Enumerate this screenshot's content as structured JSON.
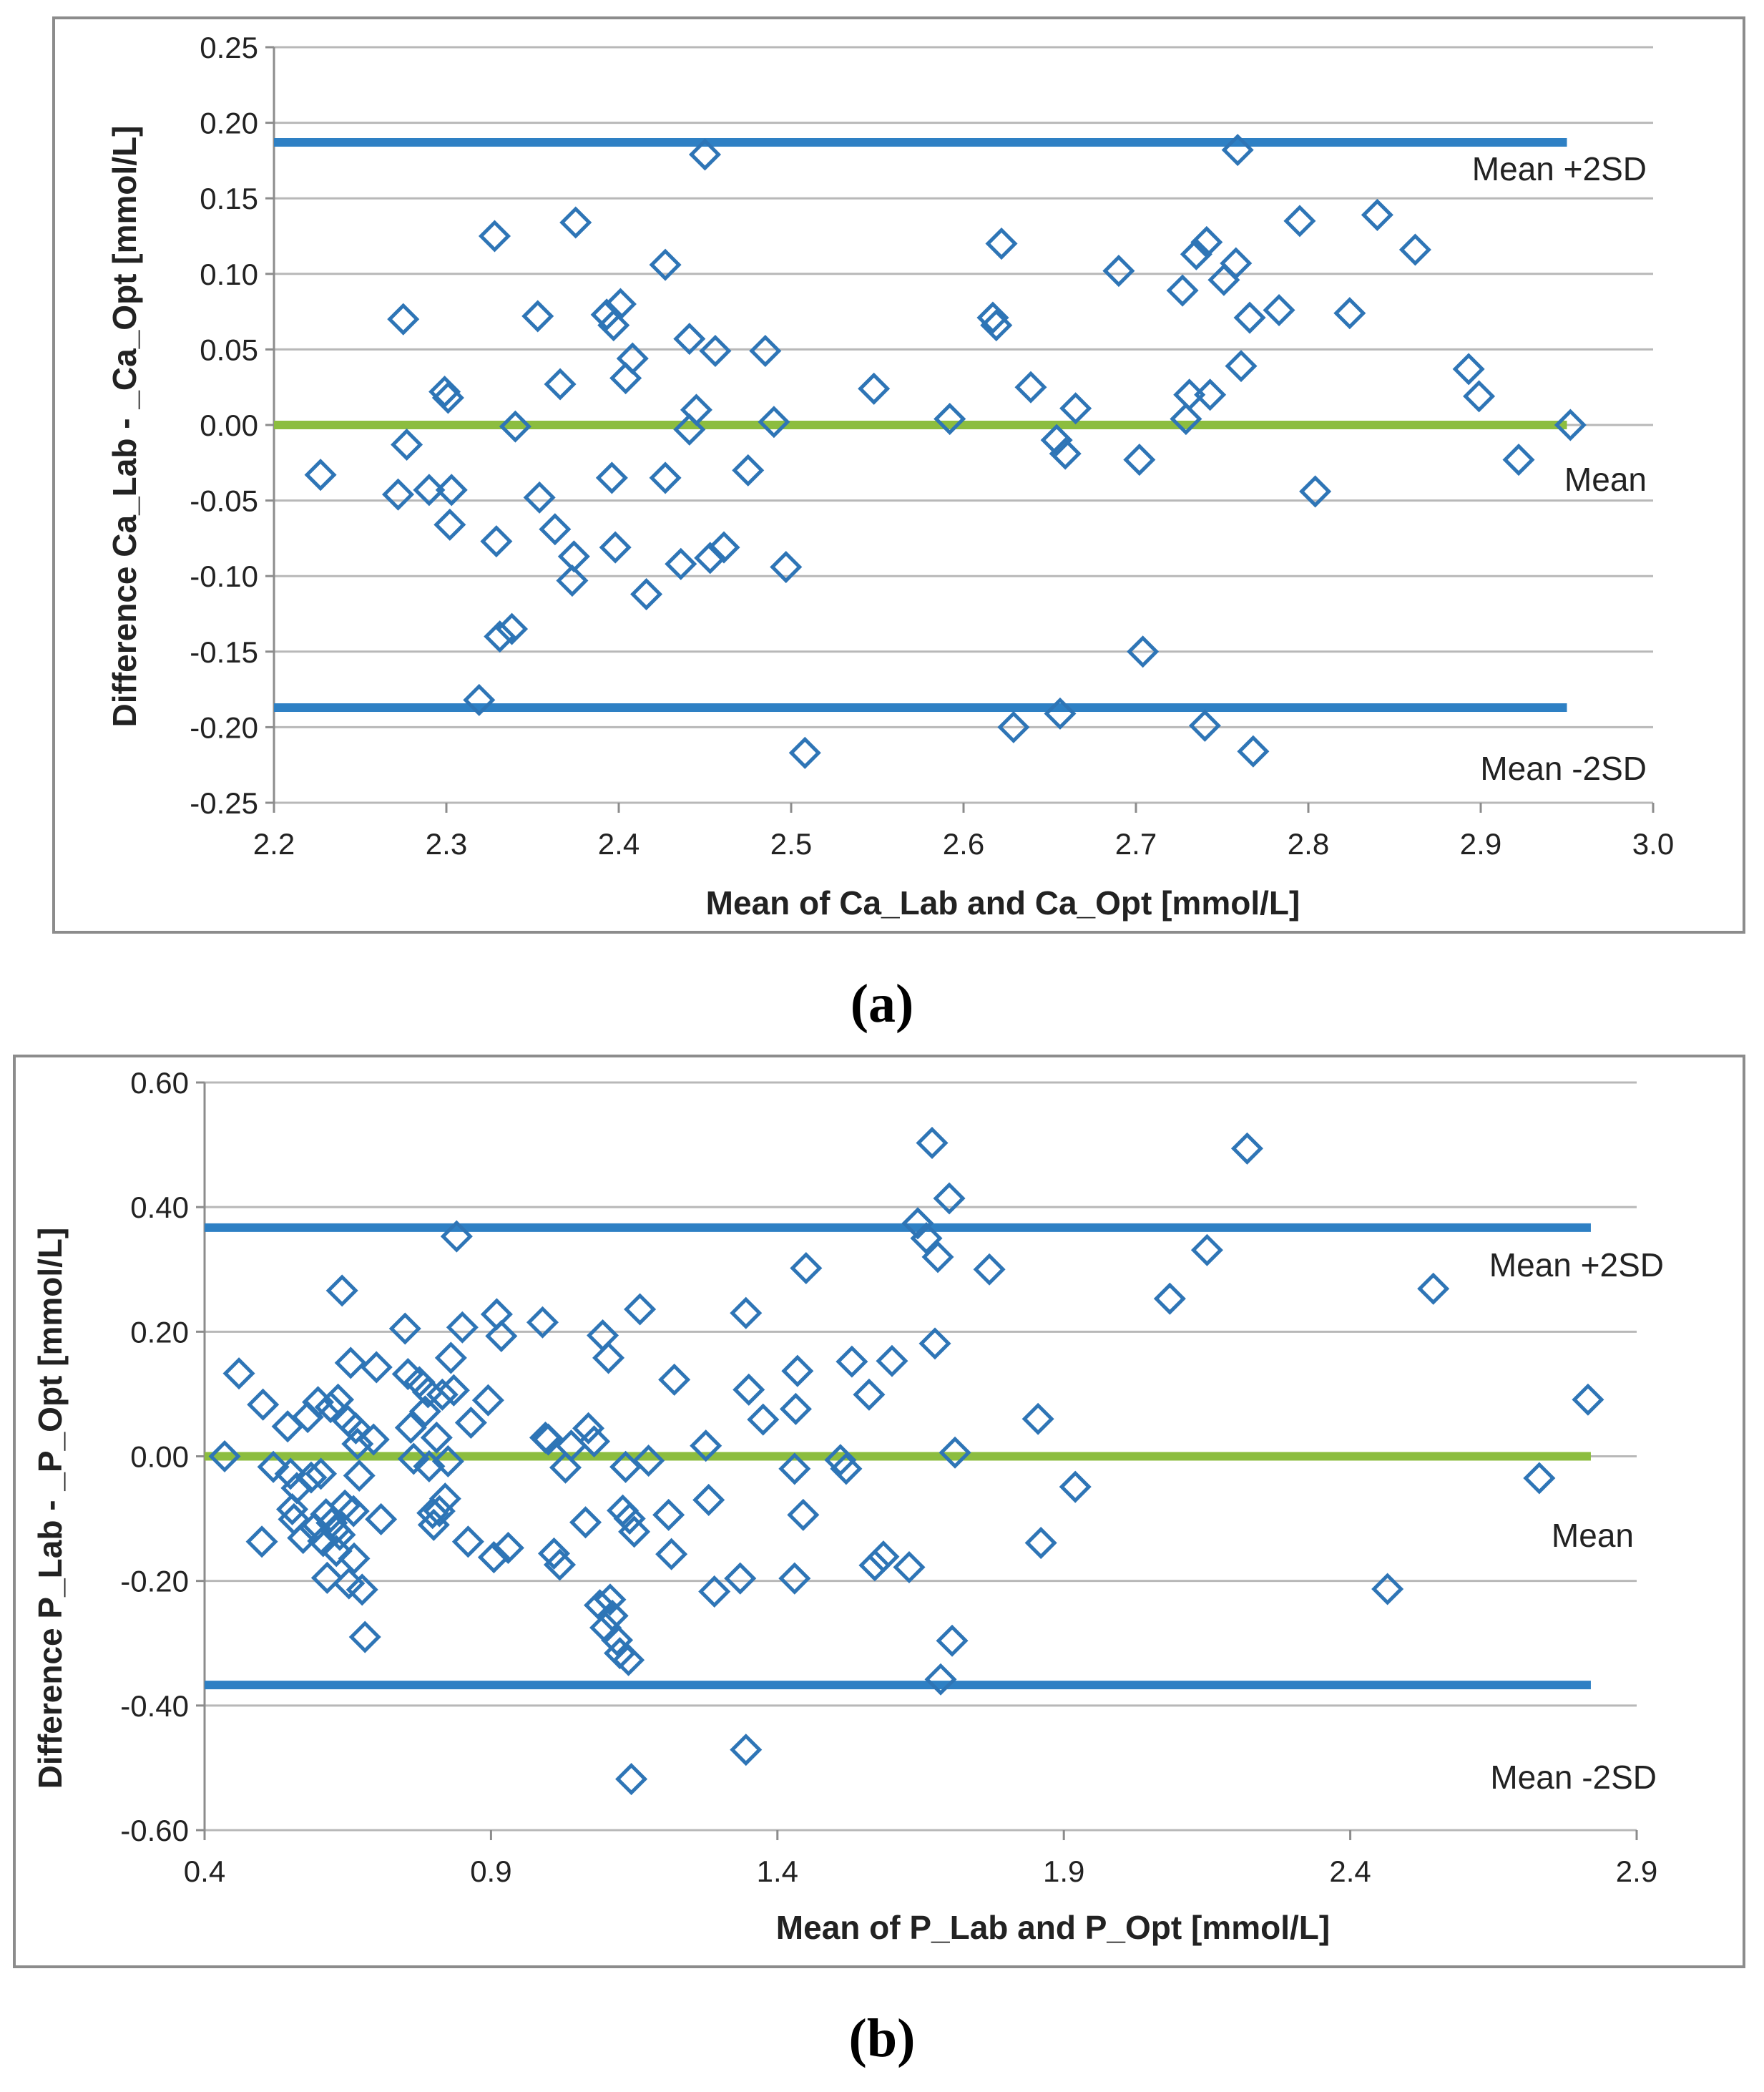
{
  "colors": {
    "marker": "#2e75b6",
    "sd_line": "#2e80c4",
    "mean_line": "#8cbd3f",
    "grid": "#b8b8b8",
    "frame": "#8c8c8c"
  },
  "chart_data": [
    {
      "type": "scatter",
      "panel_label": "(a)",
      "xlabel": "Mean of Ca_Lab and Ca_Opt [mmol/L]",
      "ylabel": "Difference Ca_Lab - _Ca_Opt [mmol/L]",
      "xlim": [
        2.2,
        3.0
      ],
      "ylim": [
        -0.25,
        0.25
      ],
      "x_ticks": [
        "2.2",
        "2.3",
        "2.4",
        "2.5",
        "2.6",
        "2.7",
        "2.8",
        "2.9",
        "3.0"
      ],
      "y_ticks": [
        "0.25",
        "0.20",
        "0.15",
        "0.10",
        "0.05",
        "0.00",
        "-0.05",
        "-0.10",
        "-0.15",
        "-0.20",
        "-0.25"
      ],
      "grid": "horizontal",
      "lines": {
        "upper": {
          "y": 0.187,
          "x_end": 2.95,
          "label": "Mean +2SD"
        },
        "mean": {
          "y": 0.0,
          "x_end": 2.95,
          "label": "Mean"
        },
        "lower": {
          "y": -0.187,
          "x_end": 2.95,
          "label": "Mean -2SD"
        }
      },
      "points": [
        [
          2.227,
          -0.033
        ],
        [
          2.272,
          -0.046
        ],
        [
          2.277,
          -0.013
        ],
        [
          2.275,
          0.07
        ],
        [
          2.29,
          -0.043
        ],
        [
          2.299,
          0.022
        ],
        [
          2.301,
          0.018
        ],
        [
          2.302,
          -0.066
        ],
        [
          2.303,
          -0.043
        ],
        [
          2.319,
          -0.182
        ],
        [
          2.328,
          0.125
        ],
        [
          2.329,
          -0.077
        ],
        [
          2.331,
          -0.14
        ],
        [
          2.338,
          -0.135
        ],
        [
          2.34,
          -0.001
        ],
        [
          2.353,
          0.072
        ],
        [
          2.354,
          -0.048
        ],
        [
          2.363,
          -0.069
        ],
        [
          2.366,
          0.027
        ],
        [
          2.373,
          -0.103
        ],
        [
          2.374,
          -0.087
        ],
        [
          2.375,
          0.134
        ],
        [
          2.393,
          0.073
        ],
        [
          2.397,
          0.066
        ],
        [
          2.396,
          -0.035
        ],
        [
          2.398,
          -0.081
        ],
        [
          2.401,
          0.08
        ],
        [
          2.404,
          0.031
        ],
        [
          2.408,
          0.044
        ],
        [
          2.416,
          -0.112
        ],
        [
          2.427,
          0.106
        ],
        [
          2.427,
          -0.035
        ],
        [
          2.436,
          -0.092
        ],
        [
          2.441,
          0.057
        ],
        [
          2.441,
          -0.003
        ],
        [
          2.445,
          0.01
        ],
        [
          2.45,
          0.179
        ],
        [
          2.453,
          -0.088
        ],
        [
          2.456,
          0.049
        ],
        [
          2.461,
          -0.081
        ],
        [
          2.475,
          -0.03
        ],
        [
          2.485,
          0.049
        ],
        [
          2.49,
          0.002
        ],
        [
          2.497,
          -0.094
        ],
        [
          2.508,
          -0.217
        ],
        [
          2.548,
          0.024
        ],
        [
          2.592,
          0.004
        ],
        [
          2.617,
          0.071
        ],
        [
          2.619,
          0.066
        ],
        [
          2.622,
          0.12
        ],
        [
          2.629,
          -0.2
        ],
        [
          2.639,
          0.025
        ],
        [
          2.654,
          -0.01
        ],
        [
          2.656,
          -0.191
        ],
        [
          2.659,
          -0.019
        ],
        [
          2.665,
          0.011
        ],
        [
          2.69,
          0.102
        ],
        [
          2.702,
          -0.023
        ],
        [
          2.704,
          -0.15
        ],
        [
          2.727,
          0.089
        ],
        [
          2.729,
          0.004
        ],
        [
          2.731,
          0.02
        ],
        [
          2.735,
          0.113
        ],
        [
          2.741,
          0.121
        ],
        [
          2.743,
          0.02
        ],
        [
          2.74,
          -0.199
        ],
        [
          2.751,
          0.096
        ],
        [
          2.758,
          0.107
        ],
        [
          2.759,
          0.182
        ],
        [
          2.761,
          0.039
        ],
        [
          2.766,
          0.071
        ],
        [
          2.768,
          -0.216
        ],
        [
          2.783,
          0.076
        ],
        [
          2.795,
          0.135
        ],
        [
          2.804,
          -0.044
        ],
        [
          2.824,
          0.074
        ],
        [
          2.84,
          0.139
        ],
        [
          2.862,
          0.116
        ],
        [
          2.893,
          0.037
        ],
        [
          2.899,
          0.019
        ],
        [
          2.922,
          -0.023
        ],
        [
          2.952,
          0.0
        ]
      ],
      "caption": "(a)"
    },
    {
      "type": "scatter",
      "panel_label": "(b)",
      "xlabel": "Mean of P_Lab and P_Opt [mmol/L]",
      "ylabel": "Difference P_Lab - _P_Opt [mmol/L]",
      "xlim": [
        0.4,
        2.9
      ],
      "ylim": [
        -0.6,
        0.6
      ],
      "x_ticks": [
        "0.4",
        "0.9",
        "1.4",
        "1.9",
        "2.4",
        "2.9"
      ],
      "y_ticks": [
        "0.60",
        "0.40",
        "0.20",
        "0.00",
        "-0.20",
        "-0.40",
        "-0.60"
      ],
      "grid": "horizontal",
      "lines": {
        "upper": {
          "y": 0.367,
          "x_end": 2.82,
          "label": "Mean +2SD"
        },
        "mean": {
          "y": 0.0,
          "x_end": 2.82,
          "label": "Mean"
        },
        "lower": {
          "y": -0.367,
          "x_end": 2.82,
          "label": "Mean -2SD"
        }
      },
      "points": [
        [
          0.435,
          0.0
        ],
        [
          0.46,
          0.133
        ],
        [
          0.5,
          -0.137
        ],
        [
          0.502,
          0.083
        ],
        [
          0.52,
          -0.017
        ],
        [
          0.545,
          0.048
        ],
        [
          0.55,
          -0.028
        ],
        [
          0.553,
          -0.085
        ],
        [
          0.556,
          -0.101
        ],
        [
          0.561,
          -0.051
        ],
        [
          0.572,
          -0.131
        ],
        [
          0.58,
          0.063
        ],
        [
          0.586,
          -0.034
        ],
        [
          0.592,
          -0.115
        ],
        [
          0.598,
          0.087
        ],
        [
          0.603,
          -0.028
        ],
        [
          0.607,
          -0.136
        ],
        [
          0.612,
          -0.093
        ],
        [
          0.614,
          -0.195
        ],
        [
          0.62,
          0.079
        ],
        [
          0.622,
          -0.107
        ],
        [
          0.628,
          -0.118
        ],
        [
          0.63,
          -0.152
        ],
        [
          0.633,
          0.091
        ],
        [
          0.636,
          -0.126
        ],
        [
          0.64,
          0.266
        ],
        [
          0.645,
          -0.079
        ],
        [
          0.65,
          0.057
        ],
        [
          0.652,
          -0.204
        ],
        [
          0.655,
          0.15
        ],
        [
          0.66,
          -0.088
        ],
        [
          0.661,
          -0.164
        ],
        [
          0.664,
          0.045
        ],
        [
          0.667,
          0.02
        ],
        [
          0.67,
          -0.031
        ],
        [
          0.675,
          -0.214
        ],
        [
          0.68,
          -0.29
        ],
        [
          0.695,
          0.027
        ],
        [
          0.7,
          0.143
        ],
        [
          0.708,
          -0.101
        ],
        [
          0.75,
          0.205
        ],
        [
          0.755,
          0.132
        ],
        [
          0.76,
          0.046
        ],
        [
          0.765,
          -0.004
        ],
        [
          0.775,
          0.119
        ],
        [
          0.785,
          0.072
        ],
        [
          0.79,
          0.103
        ],
        [
          0.792,
          -0.016
        ],
        [
          0.798,
          -0.091
        ],
        [
          0.8,
          -0.11
        ],
        [
          0.805,
          0.03
        ],
        [
          0.81,
          -0.088
        ],
        [
          0.815,
          0.099
        ],
        [
          0.82,
          -0.068
        ],
        [
          0.825,
          -0.008
        ],
        [
          0.83,
          0.158
        ],
        [
          0.835,
          0.106
        ],
        [
          0.84,
          0.353
        ],
        [
          0.85,
          0.207
        ],
        [
          0.86,
          -0.137
        ],
        [
          0.865,
          0.054
        ],
        [
          0.895,
          0.09
        ],
        [
          0.905,
          -0.162
        ],
        [
          0.91,
          0.228
        ],
        [
          0.918,
          0.193
        ],
        [
          0.93,
          -0.147
        ],
        [
          0.99,
          0.215
        ],
        [
          0.995,
          0.03
        ],
        [
          1.0,
          0.027
        ],
        [
          1.01,
          -0.156
        ],
        [
          1.02,
          -0.174
        ],
        [
          1.03,
          -0.018
        ],
        [
          1.04,
          0.017
        ],
        [
          1.065,
          -0.106
        ],
        [
          1.07,
          0.045
        ],
        [
          1.08,
          0.024
        ],
        [
          1.09,
          -0.239
        ],
        [
          1.095,
          0.194
        ],
        [
          1.1,
          -0.275
        ],
        [
          1.105,
          0.158
        ],
        [
          1.108,
          -0.23
        ],
        [
          1.112,
          -0.256
        ],
        [
          1.12,
          -0.295
        ],
        [
          1.125,
          -0.316
        ],
        [
          1.13,
          -0.087
        ],
        [
          1.135,
          -0.017
        ],
        [
          1.14,
          -0.327
        ],
        [
          1.142,
          -0.1
        ],
        [
          1.145,
          -0.518
        ],
        [
          1.15,
          -0.121
        ],
        [
          1.16,
          0.236
        ],
        [
          1.175,
          -0.007
        ],
        [
          1.21,
          -0.094
        ],
        [
          1.215,
          -0.157
        ],
        [
          1.22,
          0.123
        ],
        [
          1.275,
          0.017
        ],
        [
          1.28,
          -0.07
        ],
        [
          1.29,
          -0.217
        ],
        [
          1.335,
          -0.196
        ],
        [
          1.345,
          0.23
        ],
        [
          1.345,
          -0.471
        ],
        [
          1.35,
          0.107
        ],
        [
          1.375,
          0.059
        ],
        [
          1.43,
          -0.196
        ],
        [
          1.43,
          -0.02
        ],
        [
          1.432,
          0.076
        ],
        [
          1.435,
          0.137
        ],
        [
          1.445,
          -0.094
        ],
        [
          1.45,
          0.302
        ],
        [
          1.51,
          -0.006
        ],
        [
          1.52,
          -0.02
        ],
        [
          1.53,
          0.152
        ],
        [
          1.56,
          0.099
        ],
        [
          1.57,
          -0.175
        ],
        [
          1.585,
          -0.161
        ],
        [
          1.6,
          0.153
        ],
        [
          1.63,
          -0.178
        ],
        [
          1.645,
          0.374
        ],
        [
          1.66,
          0.35
        ],
        [
          1.67,
          0.503
        ],
        [
          1.675,
          0.181
        ],
        [
          1.68,
          0.32
        ],
        [
          1.685,
          -0.358
        ],
        [
          1.7,
          0.414
        ],
        [
          1.705,
          -0.296
        ],
        [
          1.71,
          0.006
        ],
        [
          1.77,
          0.3
        ],
        [
          1.855,
          0.06
        ],
        [
          1.86,
          -0.139
        ],
        [
          1.92,
          -0.049
        ],
        [
          2.085,
          0.253
        ],
        [
          2.15,
          0.331
        ],
        [
          2.22,
          0.494
        ],
        [
          2.465,
          -0.213
        ],
        [
          2.545,
          0.269
        ],
        [
          2.73,
          -0.035
        ],
        [
          2.815,
          0.091
        ]
      ],
      "caption": "(b)"
    }
  ]
}
